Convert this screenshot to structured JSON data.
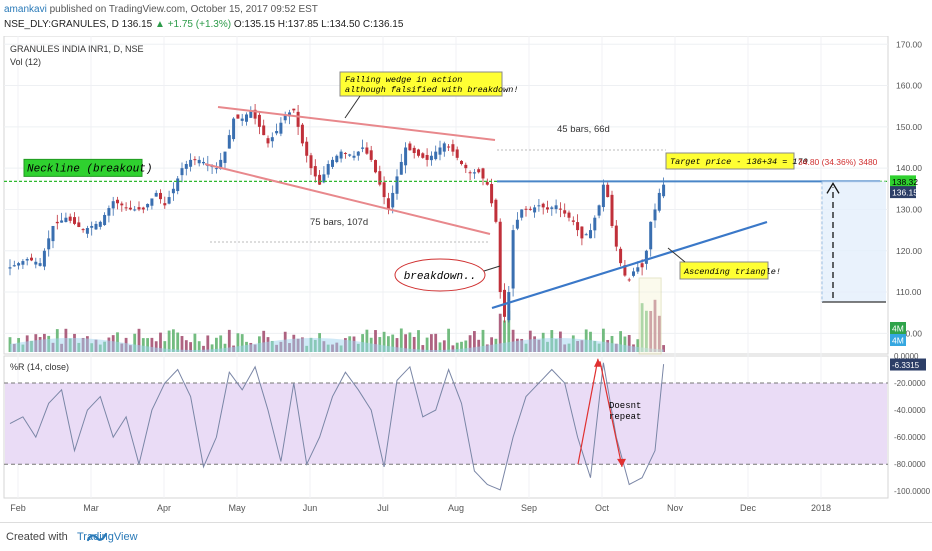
{
  "header": {
    "author": "amankavi",
    "published": " published on TradingView.com, October 15, 2017 09:52 EST",
    "symbol_line": "NSE_DLY:GRANULES, D",
    "last": "136.15",
    "change": "▲ +1.75 (+1.3%)",
    "ohlc": "O:135.15 H:137.85 L:134.50 C:136.15"
  },
  "footer": {
    "created_with": "Created with",
    "brand": "TradingView"
  },
  "chart_data": {
    "type": "candlestick",
    "title": "GRANULES INDIA INR1, D, NSE",
    "volume_label": "Vol (12)",
    "oscillator_label": "%R (14, close)",
    "price_axis": {
      "ylim": [
        95,
        172
      ],
      "ticks": [
        "170.00",
        "160.00",
        "150.00",
        "140.00",
        "130.00",
        "120.00",
        "110.00",
        "100.00"
      ]
    },
    "oscillator_axis": {
      "ylim": [
        -105,
        0
      ],
      "ticks": [
        "0.0000",
        "-20.0000",
        "-40.0000",
        "-60.0000",
        "-80.0000",
        "-100.0000"
      ],
      "levels": [
        -20,
        -80
      ]
    },
    "time_axis": [
      "Feb",
      "Mar",
      "Apr",
      "May",
      "Jun",
      "Jul",
      "Aug",
      "Sep",
      "Oct",
      "Nov",
      "Dec",
      "2018"
    ],
    "price_badges": {
      "neckline": "138.32",
      "last": "136.15",
      "volume_a": "4M",
      "volume_b": "4M",
      "osc_last": "-6.3315"
    },
    "colors": {
      "up": "#3a6fb0",
      "down": "#c0303a",
      "neckline": "#2fb82f",
      "wedge": "#e8888c",
      "trend": "#3a78c8",
      "osc_band": "#eadcf6",
      "osc_line": "#7a86a6"
    },
    "price_path": [
      {
        "x": 0,
        "p": 116
      },
      {
        "x": 4,
        "p": 118
      },
      {
        "x": 7,
        "p": 117
      },
      {
        "x": 10,
        "p": 126
      },
      {
        "x": 13,
        "p": 128
      },
      {
        "x": 17,
        "p": 125
      },
      {
        "x": 21,
        "p": 127
      },
      {
        "x": 24,
        "p": 132
      },
      {
        "x": 28,
        "p": 130
      },
      {
        "x": 31,
        "p": 130
      },
      {
        "x": 34,
        "p": 134
      },
      {
        "x": 36,
        "p": 131
      },
      {
        "x": 38,
        "p": 135
      },
      {
        "x": 40,
        "p": 140
      },
      {
        "x": 42,
        "p": 142
      },
      {
        "x": 44,
        "p": 142
      },
      {
        "x": 46,
        "p": 141
      },
      {
        "x": 48,
        "p": 140
      },
      {
        "x": 50,
        "p": 144
      },
      {
        "x": 52,
        "p": 152
      },
      {
        "x": 54,
        "p": 152
      },
      {
        "x": 56,
        "p": 154
      },
      {
        "x": 58,
        "p": 150
      },
      {
        "x": 60,
        "p": 146
      },
      {
        "x": 62,
        "p": 149
      },
      {
        "x": 64,
        "p": 153
      },
      {
        "x": 66,
        "p": 154
      },
      {
        "x": 68,
        "p": 146
      },
      {
        "x": 70,
        "p": 140
      },
      {
        "x": 72,
        "p": 136
      },
      {
        "x": 74,
        "p": 141
      },
      {
        "x": 77,
        "p": 144
      },
      {
        "x": 80,
        "p": 143
      },
      {
        "x": 82,
        "p": 145
      },
      {
        "x": 84,
        "p": 142
      },
      {
        "x": 86,
        "p": 136
      },
      {
        "x": 88,
        "p": 130
      },
      {
        "x": 90,
        "p": 138
      },
      {
        "x": 92,
        "p": 145
      },
      {
        "x": 95,
        "p": 143
      },
      {
        "x": 97,
        "p": 142
      },
      {
        "x": 99,
        "p": 144
      },
      {
        "x": 101,
        "p": 146
      },
      {
        "x": 103,
        "p": 144
      },
      {
        "x": 105,
        "p": 141
      },
      {
        "x": 107,
        "p": 139
      },
      {
        "x": 109,
        "p": 139
      },
      {
        "x": 111,
        "p": 136
      },
      {
        "x": 113,
        "p": 127
      },
      {
        "x": 114,
        "p": 110
      },
      {
        "x": 115,
        "p": 104
      },
      {
        "x": 116,
        "p": 110
      },
      {
        "x": 117,
        "p": 125
      },
      {
        "x": 119,
        "p": 130
      },
      {
        "x": 121,
        "p": 130
      },
      {
        "x": 123,
        "p": 131
      },
      {
        "x": 125,
        "p": 130
      },
      {
        "x": 127,
        "p": 131
      },
      {
        "x": 129,
        "p": 129
      },
      {
        "x": 131,
        "p": 127
      },
      {
        "x": 133,
        "p": 123
      },
      {
        "x": 135,
        "p": 125
      },
      {
        "x": 137,
        "p": 131
      },
      {
        "x": 138,
        "p": 136
      },
      {
        "x": 139,
        "p": 133
      },
      {
        "x": 140,
        "p": 126
      },
      {
        "x": 141,
        "p": 121
      },
      {
        "x": 142,
        "p": 117
      },
      {
        "x": 143,
        "p": 114
      },
      {
        "x": 144,
        "p": 113
      },
      {
        "x": 145,
        "p": 115
      },
      {
        "x": 146,
        "p": 116
      },
      {
        "x": 147,
        "p": 116
      },
      {
        "x": 148,
        "p": 120
      },
      {
        "x": 149,
        "p": 127
      },
      {
        "x": 150,
        "p": 130
      },
      {
        "x": 151,
        "p": 134
      },
      {
        "x": 152,
        "p": 136
      }
    ],
    "osc_path": [
      {
        "x": 0,
        "p": -50
      },
      {
        "x": 3,
        "p": -45
      },
      {
        "x": 6,
        "p": -60
      },
      {
        "x": 9,
        "p": -35
      },
      {
        "x": 12,
        "p": -25
      },
      {
        "x": 15,
        "p": -70
      },
      {
        "x": 18,
        "p": -40
      },
      {
        "x": 21,
        "p": -30
      },
      {
        "x": 24,
        "p": -60
      },
      {
        "x": 27,
        "p": -45
      },
      {
        "x": 30,
        "p": -80
      },
      {
        "x": 33,
        "p": -40
      },
      {
        "x": 36,
        "p": -20
      },
      {
        "x": 39,
        "p": -10
      },
      {
        "x": 42,
        "p": -30
      },
      {
        "x": 45,
        "p": -82
      },
      {
        "x": 48,
        "p": -60
      },
      {
        "x": 51,
        "p": -12
      },
      {
        "x": 54,
        "p": -25
      },
      {
        "x": 57,
        "p": -8
      },
      {
        "x": 60,
        "p": -40
      },
      {
        "x": 63,
        "p": -78
      },
      {
        "x": 66,
        "p": -20
      },
      {
        "x": 69,
        "p": -80
      },
      {
        "x": 72,
        "p": -60
      },
      {
        "x": 75,
        "p": -30
      },
      {
        "x": 78,
        "p": -12
      },
      {
        "x": 81,
        "p": -25
      },
      {
        "x": 84,
        "p": -40
      },
      {
        "x": 87,
        "p": -82
      },
      {
        "x": 90,
        "p": -18
      },
      {
        "x": 93,
        "p": -8
      },
      {
        "x": 96,
        "p": -45
      },
      {
        "x": 99,
        "p": -40
      },
      {
        "x": 102,
        "p": -10
      },
      {
        "x": 105,
        "p": -35
      },
      {
        "x": 108,
        "p": -85
      },
      {
        "x": 111,
        "p": -95
      },
      {
        "x": 114,
        "p": -99
      },
      {
        "x": 117,
        "p": -60
      },
      {
        "x": 120,
        "p": -30
      },
      {
        "x": 123,
        "p": -20
      },
      {
        "x": 126,
        "p": -10
      },
      {
        "x": 129,
        "p": -20
      },
      {
        "x": 132,
        "p": -60
      },
      {
        "x": 135,
        "p": -90
      },
      {
        "x": 138,
        "p": -5
      },
      {
        "x": 141,
        "p": -60
      },
      {
        "x": 144,
        "p": -95
      },
      {
        "x": 147,
        "p": -90
      },
      {
        "x": 150,
        "p": -70
      },
      {
        "x": 152,
        "p": -6
      }
    ],
    "annotations": {
      "neckline": "Neckline (breakout)",
      "falling_wedge": [
        "Falling wedge in action",
        "although falsified with breakdown!"
      ],
      "bars_75": "75 bars, 107d",
      "bars_45": "45 bars, 66d",
      "breakdown": "breakdown..",
      "target": "Target price - 136+34 = 170",
      "target_measure": "34.80 (34.36%) 3480",
      "ascending_triangle": "Ascending triangle!",
      "doesnt_repeat": [
        "Doesnt",
        "repeat"
      ]
    }
  }
}
